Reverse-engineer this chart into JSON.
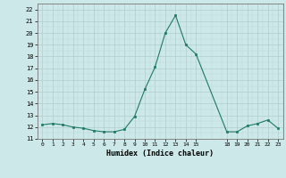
{
  "x": [
    0,
    1,
    2,
    3,
    4,
    5,
    6,
    7,
    8,
    9,
    10,
    11,
    12,
    13,
    14,
    15,
    18,
    19,
    20,
    21,
    22,
    23
  ],
  "y": [
    12.2,
    12.3,
    12.2,
    12.0,
    11.9,
    11.7,
    11.6,
    11.6,
    11.8,
    12.9,
    15.2,
    17.1,
    20.0,
    21.5,
    19.0,
    18.2,
    11.6,
    11.6,
    12.1,
    12.3,
    12.6,
    11.9
  ],
  "xlim": [
    -0.5,
    23.5
  ],
  "ylim": [
    11,
    22.5
  ],
  "yticks": [
    11,
    12,
    13,
    14,
    15,
    16,
    17,
    18,
    19,
    20,
    21,
    22
  ],
  "xticks": [
    0,
    1,
    2,
    3,
    4,
    5,
    6,
    7,
    8,
    9,
    10,
    11,
    12,
    13,
    14,
    15,
    18,
    19,
    20,
    21,
    22,
    23
  ],
  "xtick_labels": [
    "0",
    "1",
    "2",
    "3",
    "4",
    "5",
    "6",
    "7",
    "8",
    "9",
    "10",
    "11",
    "12",
    "13",
    "14",
    "15",
    "18",
    "19",
    "20",
    "21",
    "22",
    "23"
  ],
  "xlabel": "Humidex (Indice chaleur)",
  "line_color": "#1f7a63",
  "marker_color": "#1f7a63",
  "bg_color": "#cce8e8",
  "grid_major_color": "#b0cccc",
  "grid_minor_color": "#c0d8d8"
}
